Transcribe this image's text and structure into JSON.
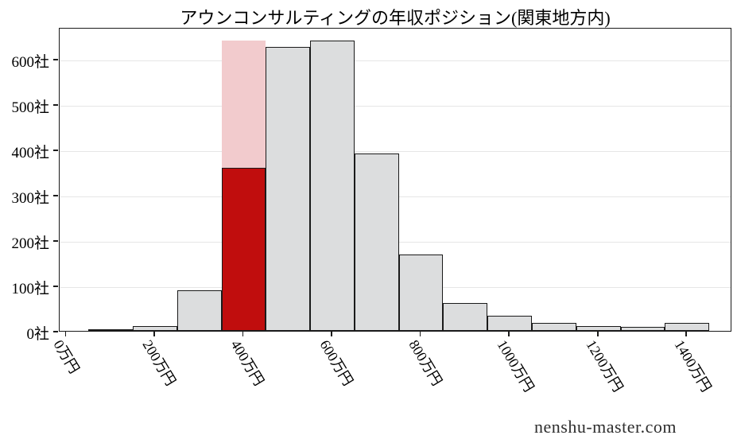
{
  "title": "アウンコンサルティングの年収ポジション(関東地方内)",
  "watermark": "nenshu-master.com",
  "colors": {
    "bar_fill": "#dcddde",
    "bar_edge": "#1a1a1a",
    "highlight_fill": "#c00d0d",
    "overlay_fill": "#f2cbcd",
    "gridline": "#e6e6e6",
    "axis": "#1a1a1a"
  },
  "chart_data": {
    "type": "bar",
    "title": "アウンコンサルティングの年収ポジション(関東地方内)",
    "xlabel": "",
    "ylabel": "",
    "unit_x": "万円",
    "unit_y": "社",
    "bin_width": 100,
    "bin_centers": [
      100,
      200,
      300,
      400,
      500,
      600,
      700,
      800,
      900,
      1000,
      1100,
      1200,
      1300,
      1400
    ],
    "values": [
      2,
      11,
      90,
      360,
      627,
      640,
      391,
      168,
      62,
      33,
      17,
      10,
      8,
      17
    ],
    "highlight_index": 3,
    "highlight_bin_center": 400,
    "highlight_value": 360,
    "highlight_overlay_value": 640,
    "x_tick_values": [
      0,
      200,
      400,
      600,
      800,
      1000,
      1200,
      1400
    ],
    "x_tick_labels": [
      "0万円",
      "200万円",
      "400万円",
      "600万円",
      "800万円",
      "1000万円",
      "1200万円",
      "1400万円"
    ],
    "y_tick_values": [
      0,
      100,
      200,
      300,
      400,
      500,
      600
    ],
    "y_tick_labels": [
      "0社",
      "100社",
      "200社",
      "300社",
      "400社",
      "500社",
      "600社"
    ],
    "ylim": [
      0,
      670
    ],
    "grid": "horizontal",
    "legend": "none"
  }
}
